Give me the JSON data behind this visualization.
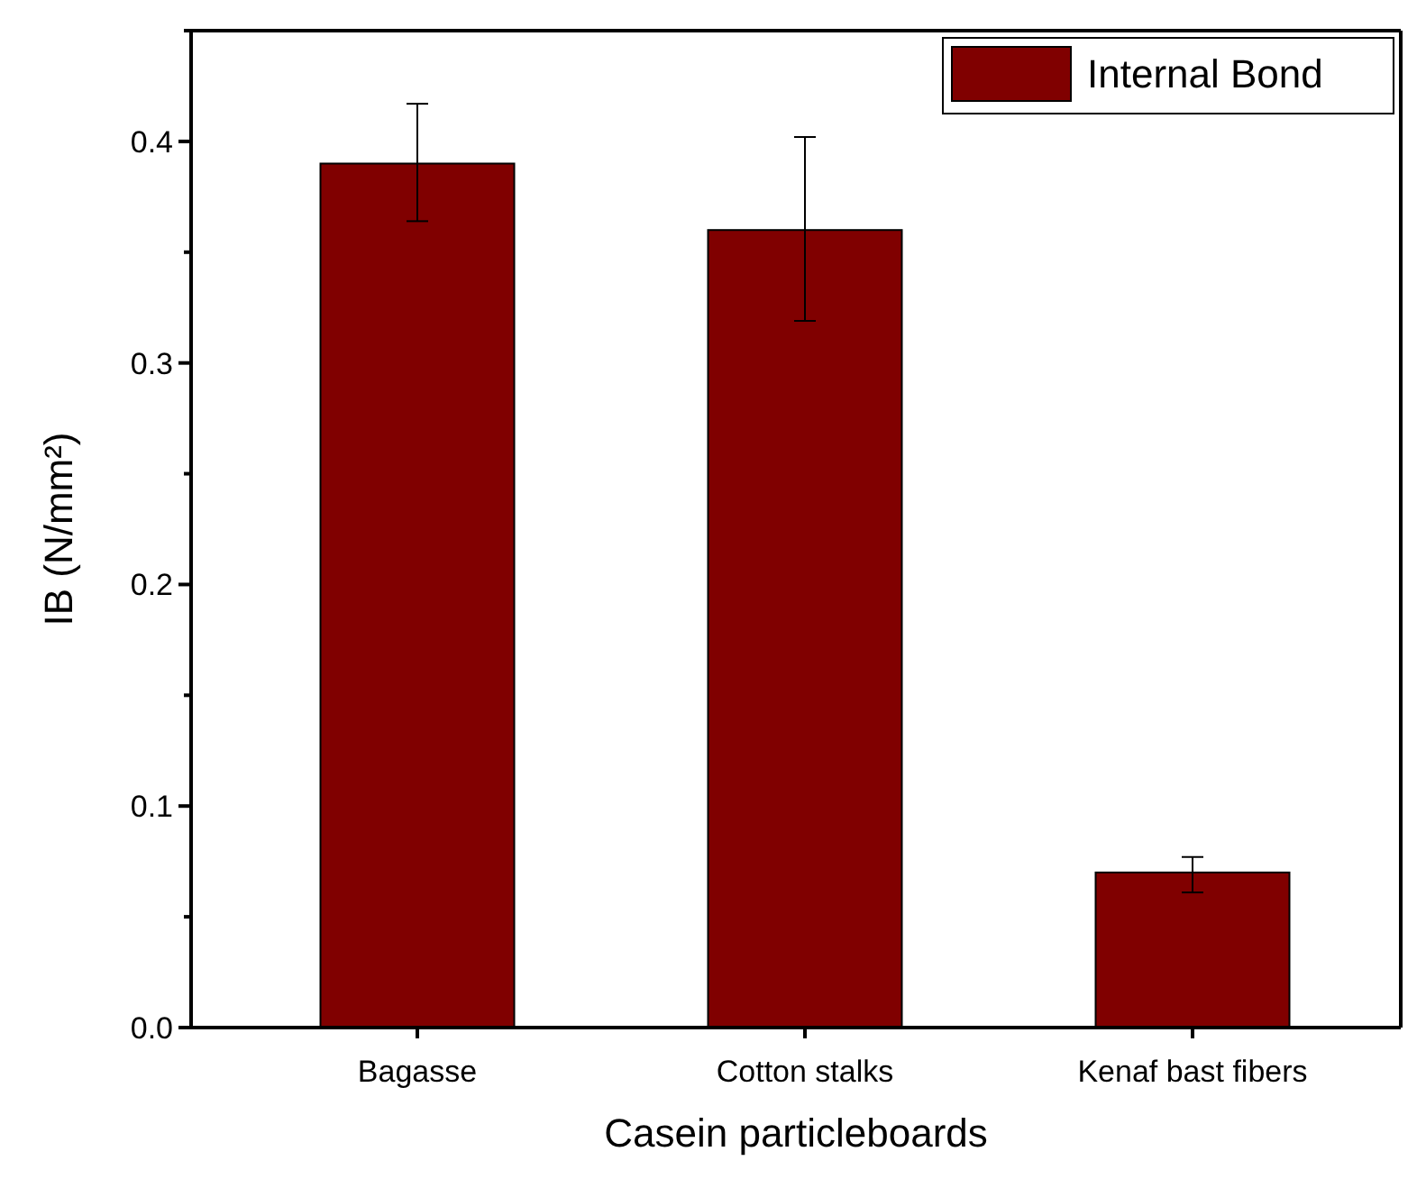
{
  "chart_data": {
    "type": "bar",
    "xlabel": "Casein particleboards",
    "ylabel": "IB (N/mm²)",
    "categories": [
      "Bagasse",
      "Cotton stalks",
      "Kenaf bast fibers"
    ],
    "series": [
      {
        "name": "Internal Bond",
        "color": "#800000",
        "values": [
          0.39,
          0.36,
          0.07
        ],
        "errors": [
          [
            0.364,
            0.417
          ],
          [
            0.319,
            0.402
          ],
          [
            0.061,
            0.077
          ]
        ]
      }
    ],
    "ylim": [
      0,
      0.45
    ],
    "yticks": [
      {
        "value": 0,
        "label": "0.0"
      },
      {
        "value": 0.05,
        "label": null
      },
      {
        "value": 0.1,
        "label": "0.1"
      },
      {
        "value": 0.15,
        "label": null
      },
      {
        "value": 0.2,
        "label": "0.2"
      },
      {
        "value": 0.25,
        "label": null
      },
      {
        "value": 0.3,
        "label": "0.3"
      },
      {
        "value": 0.35,
        "label": null
      },
      {
        "value": 0.4,
        "label": "0.4"
      },
      {
        "value": 0.45,
        "label": null
      }
    ],
    "legend": "top right",
    "grid": false
  }
}
